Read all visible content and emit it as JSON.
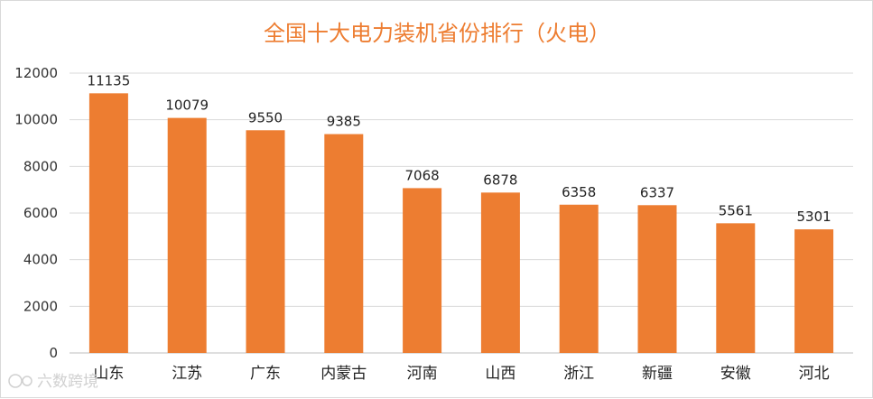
{
  "watermark": "六数跨境",
  "chart_data": {
    "type": "bar",
    "title": "全国十大电力装机省份排行（火电）",
    "categories": [
      "山东",
      "江苏",
      "广东",
      "内蒙古",
      "河南",
      "山西",
      "浙江",
      "新疆",
      "安徽",
      "河北"
    ],
    "values": [
      11135,
      10079,
      9550,
      9385,
      7068,
      6878,
      6358,
      6337,
      5561,
      5301
    ],
    "ylim": [
      0,
      12000
    ],
    "yticks": [
      0,
      2000,
      4000,
      6000,
      8000,
      10000,
      12000
    ],
    "grid": true,
    "bar_color": "#ed7d31",
    "title_color": "#ed7d31"
  }
}
